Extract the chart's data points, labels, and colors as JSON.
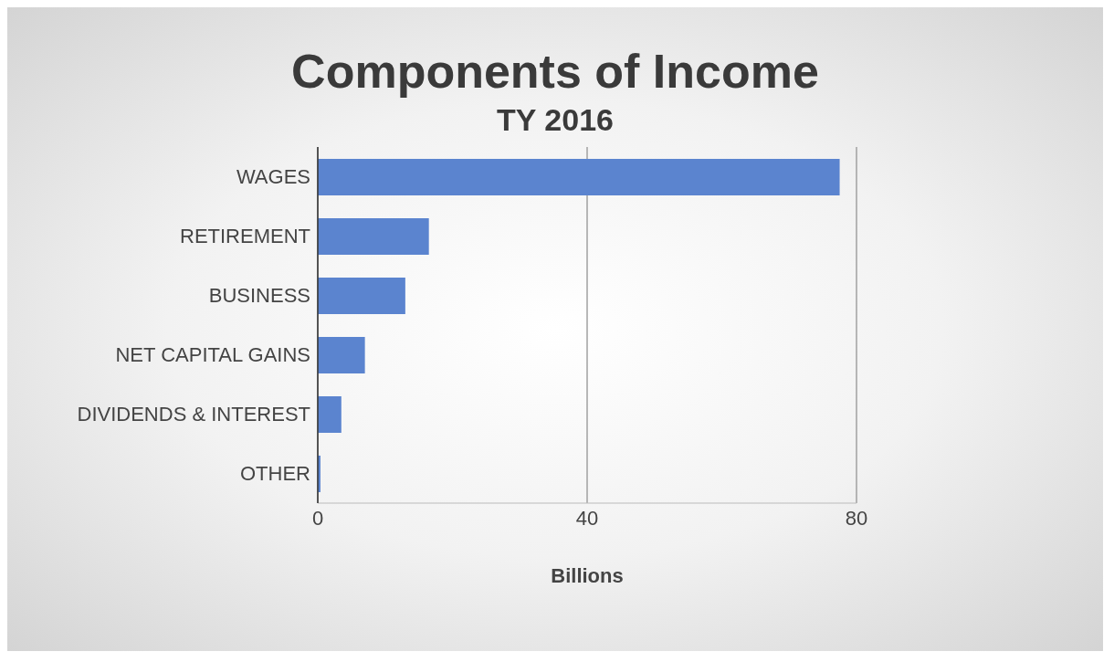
{
  "chart_data": {
    "type": "bar",
    "orientation": "horizontal",
    "title": "Components of Income",
    "subtitle": "TY 2016",
    "xlabel": "Billions",
    "categories": [
      "WAGES",
      "RETIREMENT",
      "BUSINESS",
      "NET CAPITAL GAINS",
      "DIVIDENDS & INTEREST",
      "OTHER"
    ],
    "values": [
      77.5,
      16.5,
      13,
      7,
      3.5,
      0.4
    ],
    "color": "#5b84cf",
    "xlim": [
      0,
      80
    ],
    "xticks": [
      0,
      40,
      80
    ],
    "grid": "x"
  }
}
